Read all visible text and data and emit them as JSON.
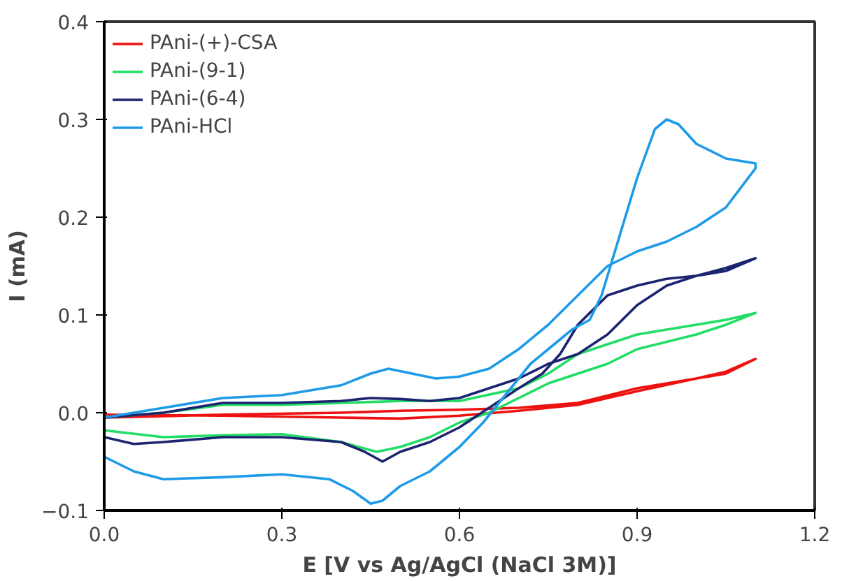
{
  "chart_data": {
    "type": "line",
    "xlabel": "E [V vs Ag/AgCl (NaCl 3M)]",
    "ylabel": "I (mA)",
    "xlim": [
      0,
      1.2
    ],
    "ylim": [
      -0.1,
      0.4
    ],
    "xticks": [
      {
        "value": 0,
        "label": "0.0"
      },
      0.3,
      0.6,
      0.9,
      1.2
    ],
    "yticks": [
      -0.1,
      {
        "value": 0,
        "label": "0.0"
      },
      0.1,
      0.2,
      0.3,
      0.4
    ],
    "grid": false,
    "legend": "top left",
    "marker": "none",
    "line_style": "solid",
    "series": [
      {
        "name": "PAni-(+)-CSA",
        "color": "#ee1111",
        "x": [
          0,
          0.2,
          0.4,
          0.5,
          0.6,
          0.7,
          0.8,
          0.9,
          1.0,
          1.05,
          1.1,
          1.05,
          1.0,
          0.9,
          0.8,
          0.7,
          0.6,
          0.5,
          0.4,
          0.2,
          0
        ],
        "values": [
          -0.005,
          -0.002,
          0,
          0.002,
          0.003,
          0.005,
          0.01,
          0.025,
          0.035,
          0.04,
          0.055,
          0.042,
          0.035,
          0.022,
          0.008,
          0.002,
          -0.003,
          -0.006,
          -0.005,
          -0.003,
          -0.002
        ]
      },
      {
        "name": "PAni-(9-1)",
        "color": "#22dd66",
        "x": [
          0,
          0.1,
          0.2,
          0.3,
          0.4,
          0.5,
          0.6,
          0.7,
          0.75,
          0.8,
          0.85,
          0.9,
          0.95,
          1.0,
          1.05,
          1.1,
          1.05,
          1.0,
          0.9,
          0.85,
          0.8,
          0.75,
          0.7,
          0.65,
          0.6,
          0.55,
          0.5,
          0.46,
          0.4,
          0.3,
          0.2,
          0.1,
          0
        ],
        "values": [
          -0.005,
          0,
          0.008,
          0.008,
          0.01,
          0.012,
          0.012,
          0.025,
          0.04,
          0.06,
          0.07,
          0.08,
          0.085,
          0.09,
          0.095,
          0.102,
          0.09,
          0.08,
          0.065,
          0.05,
          0.04,
          0.03,
          0.015,
          0,
          -0.01,
          -0.025,
          -0.035,
          -0.04,
          -0.03,
          -0.022,
          -0.023,
          -0.025,
          -0.018
        ]
      },
      {
        "name": "PAni-(6-4)",
        "color": "#1c2470",
        "x": [
          0,
          0.1,
          0.2,
          0.3,
          0.4,
          0.45,
          0.5,
          0.55,
          0.6,
          0.65,
          0.7,
          0.75,
          0.8,
          0.85,
          0.9,
          0.95,
          1.0,
          1.05,
          1.1,
          1.05,
          1.0,
          0.95,
          0.9,
          0.85,
          0.8,
          0.77,
          0.74,
          0.7,
          0.65,
          0.6,
          0.55,
          0.5,
          0.47,
          0.44,
          0.4,
          0.3,
          0.2,
          0.1,
          0.05,
          0
        ],
        "values": [
          -0.005,
          0,
          0.01,
          0.01,
          0.012,
          0.015,
          0.014,
          0.012,
          0.015,
          0.025,
          0.035,
          0.05,
          0.06,
          0.08,
          0.11,
          0.13,
          0.14,
          0.148,
          0.158,
          0.145,
          0.14,
          0.137,
          0.13,
          0.12,
          0.09,
          0.06,
          0.04,
          0.025,
          0.005,
          -0.015,
          -0.03,
          -0.04,
          -0.05,
          -0.04,
          -0.03,
          -0.025,
          -0.025,
          -0.03,
          -0.032,
          -0.025
        ]
      },
      {
        "name": "PAni-HCl",
        "color": "#1e9be8",
        "x": [
          0,
          0.1,
          0.2,
          0.3,
          0.4,
          0.45,
          0.48,
          0.52,
          0.56,
          0.6,
          0.65,
          0.7,
          0.75,
          0.8,
          0.85,
          0.9,
          0.95,
          1.0,
          1.05,
          1.1,
          1.1,
          1.05,
          1.0,
          0.97,
          0.95,
          0.93,
          0.9,
          0.87,
          0.84,
          0.82,
          0.79,
          0.76,
          0.72,
          0.68,
          0.64,
          0.6,
          0.55,
          0.5,
          0.47,
          0.45,
          0.42,
          0.38,
          0.3,
          0.2,
          0.1,
          0.05,
          0
        ],
        "values": [
          -0.005,
          0.005,
          0.015,
          0.018,
          0.028,
          0.04,
          0.045,
          0.04,
          0.035,
          0.037,
          0.045,
          0.065,
          0.09,
          0.12,
          0.15,
          0.165,
          0.175,
          0.19,
          0.21,
          0.25,
          0.255,
          0.26,
          0.275,
          0.295,
          0.3,
          0.29,
          0.24,
          0.18,
          0.12,
          0.095,
          0.085,
          0.07,
          0.05,
          0.02,
          -0.01,
          -0.035,
          -0.06,
          -0.075,
          -0.09,
          -0.093,
          -0.08,
          -0.068,
          -0.063,
          -0.066,
          -0.068,
          -0.06,
          -0.045
        ]
      }
    ]
  }
}
